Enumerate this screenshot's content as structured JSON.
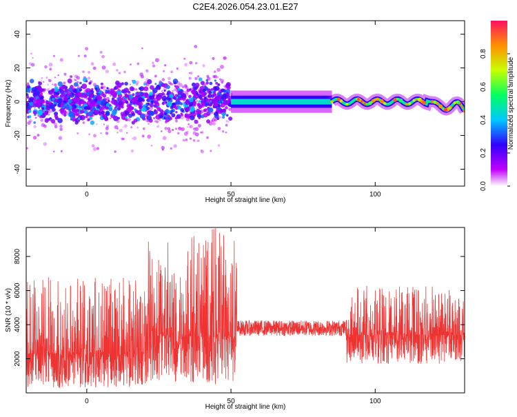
{
  "title": "C2E4.2026.054.23.01.E27",
  "chart_data": [
    {
      "type": "heatmap",
      "panel": "top",
      "xlabel": "Height of straight line (km)",
      "ylabel": "Frequency (Hz)",
      "xlim": [
        -21,
        131
      ],
      "ylim": [
        -50,
        48
      ],
      "xticks": [
        0,
        50,
        100
      ],
      "yticks": [
        -40,
        -20,
        0,
        20,
        40
      ],
      "colorbar": {
        "label": "Normalized spectral amplitude",
        "range": [
          0,
          1
        ],
        "ticks": [
          0.0,
          0.2,
          0.4,
          0.6,
          0.8
        ],
        "colors": [
          "#ffffff",
          "#c000ff",
          "#3000ff",
          "#00c8ff",
          "#00ff60",
          "#c8ff00",
          "#ff9000",
          "#ff1060"
        ]
      },
      "bands": [
        {
          "x_start": -21,
          "x_end": 50,
          "center_hz": 0,
          "spread_hz": 30,
          "peak_amplitude": 0.3,
          "character": "noisy"
        },
        {
          "x_start": 50,
          "x_end": 85,
          "center_hz": 0,
          "spread_hz": 3,
          "peak_amplitude": 0.45,
          "character": "steady line"
        },
        {
          "x_start": 85,
          "x_end": 131,
          "center_hz": 0,
          "spread_hz": 8,
          "peak_amplitude": 0.9,
          "character": "wavy line"
        }
      ]
    },
    {
      "type": "line",
      "panel": "bottom",
      "xlabel": "Height of straight line (km)",
      "ylabel": "SNR (10 * v/v)",
      "xlim": [
        -21,
        131
      ],
      "ylim": [
        0,
        9700
      ],
      "xticks": [
        0,
        50,
        100
      ],
      "yticks": [
        2000,
        4000,
        6000,
        8000
      ],
      "color": "#ee3333",
      "segments": [
        {
          "x_start": -21,
          "x_end": 20,
          "mean": 2300,
          "min": 300,
          "max": 6800
        },
        {
          "x_start": 20,
          "x_end": 52,
          "mean": 3300,
          "min": 500,
          "max": 9700
        },
        {
          "x_start": 52,
          "x_end": 90,
          "mean": 3800,
          "min": 3400,
          "max": 4300
        },
        {
          "x_start": 90,
          "x_end": 131,
          "mean": 3400,
          "min": 1700,
          "max": 6300
        }
      ]
    }
  ]
}
